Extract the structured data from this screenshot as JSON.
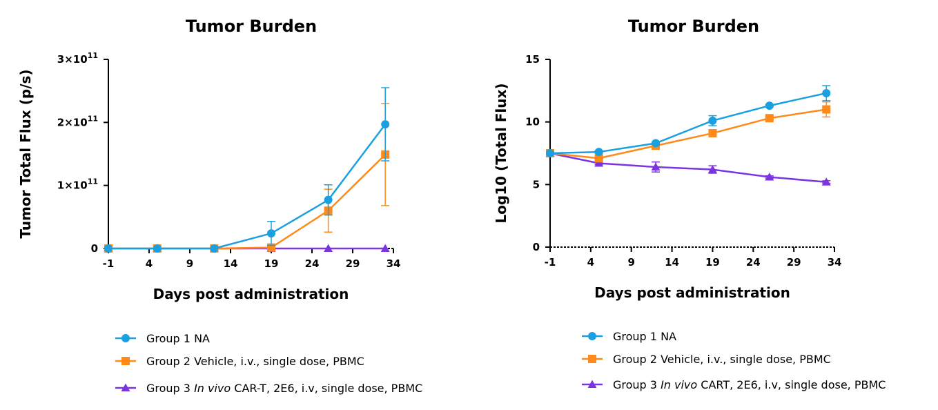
{
  "colors": {
    "group1": "#1aa0e0",
    "group2": "#ff8a1a",
    "group3": "#7a35e0"
  },
  "chart_data": [
    {
      "type": "line",
      "title": "Tumor Burden",
      "xlabel": "Days post administration",
      "ylabel": "Tumor Total Flux (p/s)",
      "xlim": [
        -1,
        34
      ],
      "ylim": [
        0,
        300000000000.0
      ],
      "x_ticks": [
        -1,
        4,
        9,
        14,
        19,
        24,
        29,
        34
      ],
      "y_ticks": [
        {
          "value": 0,
          "mantissa": "0",
          "exp": ""
        },
        {
          "value": 100000000000.0,
          "mantissa": "1×10",
          "exp": "11"
        },
        {
          "value": 200000000000.0,
          "mantissa": "2×10",
          "exp": "11"
        },
        {
          "value": 300000000000.0,
          "mantissa": "3×10",
          "exp": "11"
        }
      ],
      "legend_position": "bottom",
      "series": [
        {
          "key": "g1",
          "name_prefix": "Group 1 NA",
          "name_italic": "",
          "name_suffix": "",
          "marker": "circle",
          "x": [
            -1,
            5,
            12,
            19,
            26,
            33
          ],
          "y": [
            0,
            0,
            0,
            24000000000.0,
            77000000000.0,
            197000000000.0
          ],
          "err": [
            0,
            0,
            0,
            19000000000.0,
            24000000000.0,
            58000000000.0
          ]
        },
        {
          "key": "g2",
          "name_prefix": "Group 2 Vehicle, i.v., single dose, PBMC",
          "name_italic": "",
          "name_suffix": "",
          "marker": "square",
          "x": [
            -1,
            5,
            12,
            19,
            26,
            33
          ],
          "y": [
            0,
            0,
            0,
            1500000000.0,
            60000000000.0,
            149000000000.0
          ],
          "err": [
            0,
            0,
            0,
            0,
            34000000000.0,
            81000000000.0
          ]
        },
        {
          "key": "g3",
          "name_prefix": "Group 3 ",
          "name_italic": "In vivo",
          "name_suffix": " CAR-T, 2E6, i.v, single dose, PBMC",
          "marker": "triangle",
          "x": [
            -1,
            5,
            12,
            19,
            26,
            33
          ],
          "y": [
            0,
            0,
            0,
            0,
            0,
            0
          ],
          "err": [
            0,
            0,
            0,
            0,
            0,
            0
          ]
        }
      ]
    },
    {
      "type": "line",
      "title": "Tumor Burden",
      "xlabel": "Days post administration",
      "ylabel": "Log10  (Total Flux)",
      "xlim": [
        -1,
        34
      ],
      "ylim": [
        0,
        15
      ],
      "x_ticks": [
        -1,
        4,
        9,
        14,
        19,
        24,
        29,
        34
      ],
      "y_ticks": [
        {
          "value": 0,
          "mantissa": "0",
          "exp": ""
        },
        {
          "value": 5,
          "mantissa": "5",
          "exp": ""
        },
        {
          "value": 10,
          "mantissa": "10",
          "exp": ""
        },
        {
          "value": 15,
          "mantissa": "15",
          "exp": ""
        }
      ],
      "legend_position": "bottom",
      "series": [
        {
          "key": "g1",
          "name_prefix": "Group 1 NA",
          "name_italic": "",
          "name_suffix": "",
          "marker": "circle",
          "x": [
            -1,
            5,
            12,
            19,
            26,
            33
          ],
          "y": [
            7.5,
            7.6,
            8.3,
            10.1,
            11.3,
            12.3
          ],
          "err": [
            0.1,
            0.1,
            0.1,
            0.4,
            0.1,
            0.6
          ]
        },
        {
          "key": "g2",
          "name_prefix": "Group 2 Vehicle, i.v., single dose, PBMC",
          "name_italic": "",
          "name_suffix": "",
          "marker": "square",
          "x": [
            -1,
            5,
            12,
            19,
            26,
            33
          ],
          "y": [
            7.5,
            7.1,
            8.1,
            9.1,
            10.3,
            11.0
          ],
          "err": [
            0.1,
            0.1,
            0.1,
            0.1,
            0.1,
            0.6
          ]
        },
        {
          "key": "g3",
          "name_prefix": "Group 3 ",
          "name_italic": "In vivo",
          "name_suffix": " CART, 2E6, i.v, single dose, PBMC",
          "marker": "triangle",
          "x": [
            -1,
            5,
            12,
            19,
            26,
            33
          ],
          "y": [
            7.5,
            6.7,
            6.4,
            6.2,
            5.6,
            5.2
          ],
          "err": [
            0.1,
            0.1,
            0.4,
            0.3,
            0.1,
            0.1
          ]
        }
      ]
    }
  ]
}
